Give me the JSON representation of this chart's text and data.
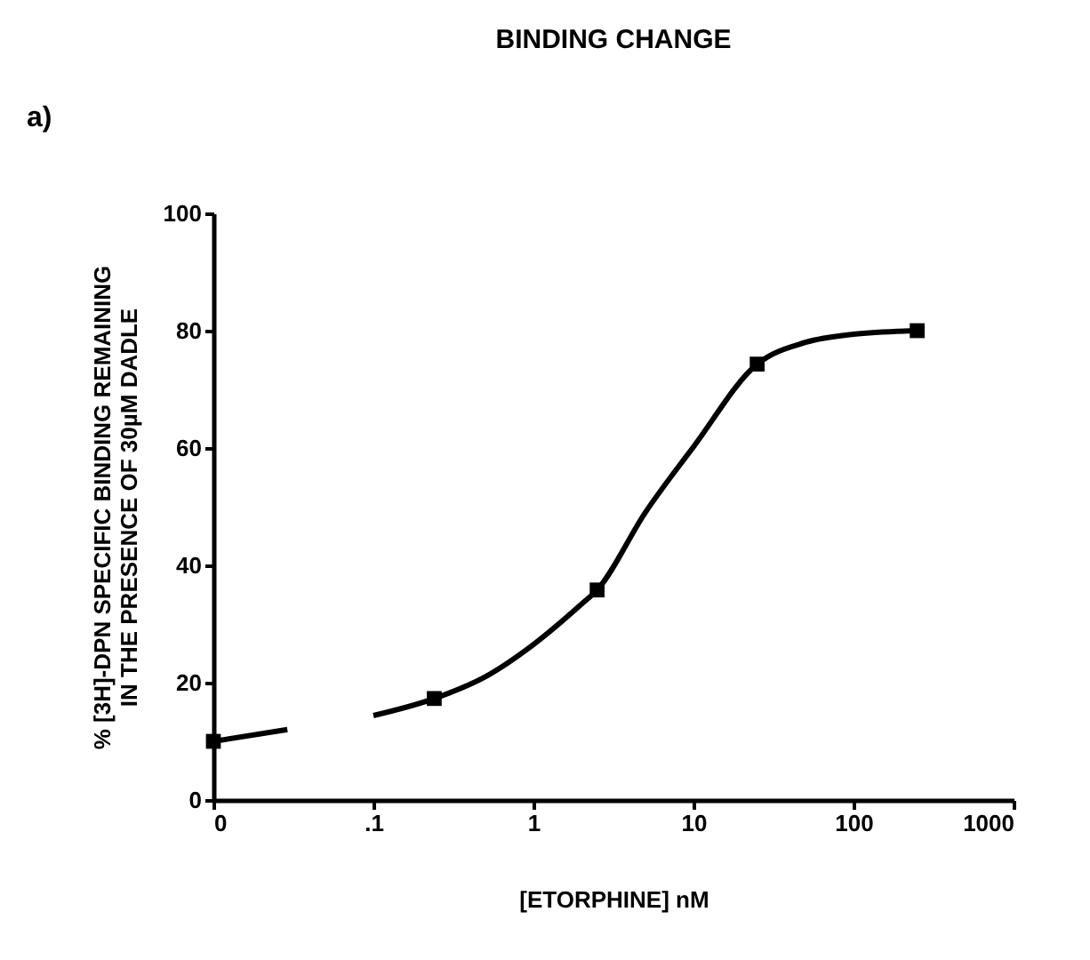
{
  "chart_data": {
    "type": "line",
    "title": "BINDING CHANGE",
    "annotations": [
      "a)"
    ],
    "xlabel": "[ETORPHINE] nM",
    "ylabel": [
      "% [3H]-DPN SPECIFIC BINDING REMAINING",
      "IN THE PRESENCE OF 30µM DADLE"
    ],
    "log": "x",
    "xlim": [
      0.01,
      1000
    ],
    "ylim": [
      0,
      100
    ],
    "xticks": [
      {
        "value": 0.01,
        "label": "0"
      },
      {
        "value": 0.1,
        "label": ".1"
      },
      1,
      10,
      100,
      1000
    ],
    "yticks": [
      0,
      20,
      40,
      60,
      80,
      100
    ],
    "grid": false,
    "series": [
      {
        "color": "#000000",
        "marker": "none",
        "x": [
          0.01,
          0.029,
          0.049,
          0.1,
          0.24,
          0.5,
          1,
          2,
          2.5,
          5,
          10,
          25,
          50,
          100,
          250
        ],
        "values": [
          10,
          12,
          null,
          14.4,
          17.3,
          21,
          26.5,
          33.4,
          35.8,
          49,
          60.2,
          74.3,
          78,
          79.4,
          80
        ]
      },
      {
        "type": "scatter",
        "color": "#000000",
        "marker": "square",
        "x": [
          0.01,
          0.24,
          2.5,
          25,
          250
        ],
        "values": [
          10,
          17.3,
          35.8,
          74.3,
          80
        ]
      }
    ]
  }
}
